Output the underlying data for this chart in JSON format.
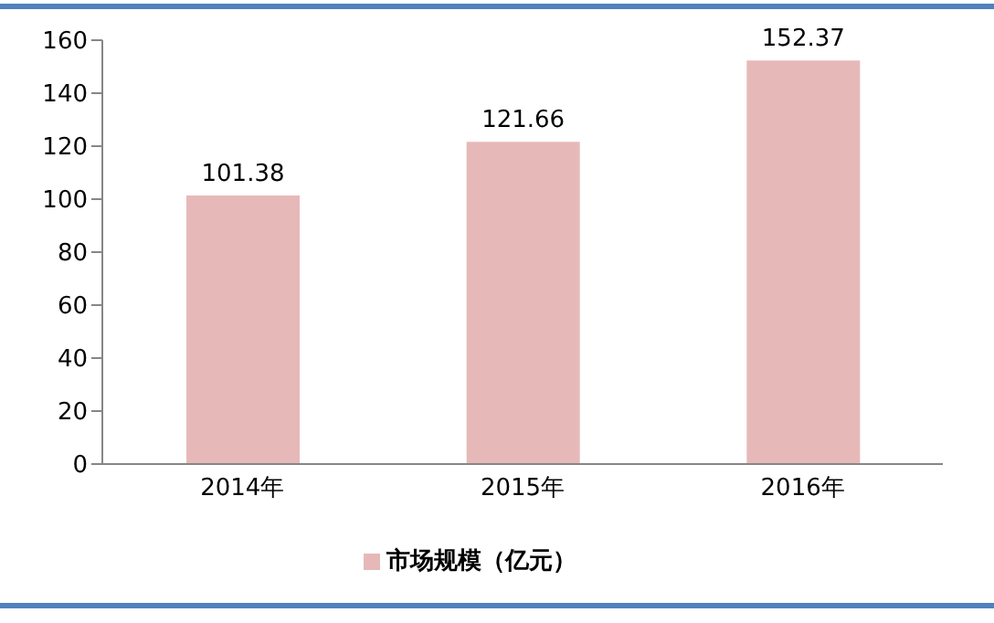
{
  "chart_data": {
    "type": "bar",
    "categories": [
      "2014年",
      "2015年",
      "2016年"
    ],
    "series": [
      {
        "name": "市场规模（亿元）",
        "color": "#e6b9b8",
        "values": [
          101.38,
          121.66,
          152.37
        ]
      }
    ],
    "ylim": [
      0,
      160
    ],
    "yticks": [
      0,
      20,
      40,
      60,
      80,
      100,
      120,
      140,
      160
    ],
    "grid": false,
    "legend": "bottom",
    "data_labels": true
  }
}
